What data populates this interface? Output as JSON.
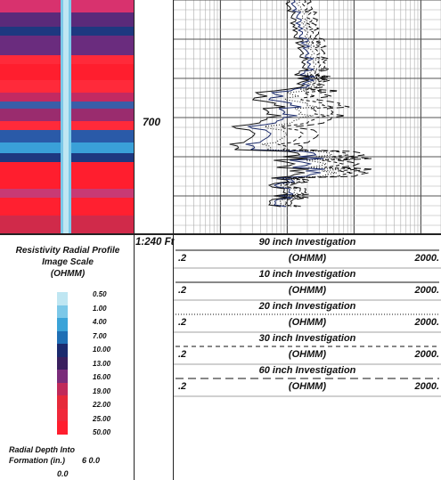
{
  "chart_data": {
    "type": "line",
    "depth_marker": "700",
    "depth_scale": "1:240 Ft",
    "image_legend": {
      "title_lines": [
        "Resistivity Radial Profile",
        "Image Scale",
        "(OHMM)"
      ],
      "ticks": [
        "0.50",
        "1.00",
        "4.00",
        "7.00",
        "10.00",
        "13.00",
        "16.00",
        "19.00",
        "22.00",
        "25.00",
        "50.00"
      ],
      "colors": [
        "#bfe6f2",
        "#7cc8e8",
        "#3aa3d8",
        "#1f6fb5",
        "#1b2a6e",
        "#3a1f5e",
        "#7a2c7a",
        "#c02a5a",
        "#e62a3a",
        "#f0283a",
        "#ff1e2e"
      ],
      "radial_label_lines": [
        "Radial Depth Into",
        "Formation (in.)"
      ],
      "radial_min": "0.0",
      "radial_max": "6 0.0"
    },
    "curves": [
      {
        "name": "90 inch Investigation",
        "unit": "(OHMM)",
        "min": ".2",
        "max": "2000.",
        "line": "solid"
      },
      {
        "name": "10 inch Investigation",
        "unit": "(OHMM)",
        "min": ".2",
        "max": "2000.",
        "line": "solid"
      },
      {
        "name": "20 inch Investigation",
        "unit": "(OHMM)",
        "min": ".2",
        "max": "2000.",
        "line": "dotted"
      },
      {
        "name": "30 inch Investigation",
        "unit": "(OHMM)",
        "min": ".2",
        "max": "2000.",
        "line": "dashed"
      },
      {
        "name": "60 inch Investigation",
        "unit": "(OHMM)",
        "min": ".2",
        "max": "2000.",
        "line": "longdash"
      }
    ],
    "scale": "log",
    "xlim": [
      0.2,
      2000
    ]
  }
}
